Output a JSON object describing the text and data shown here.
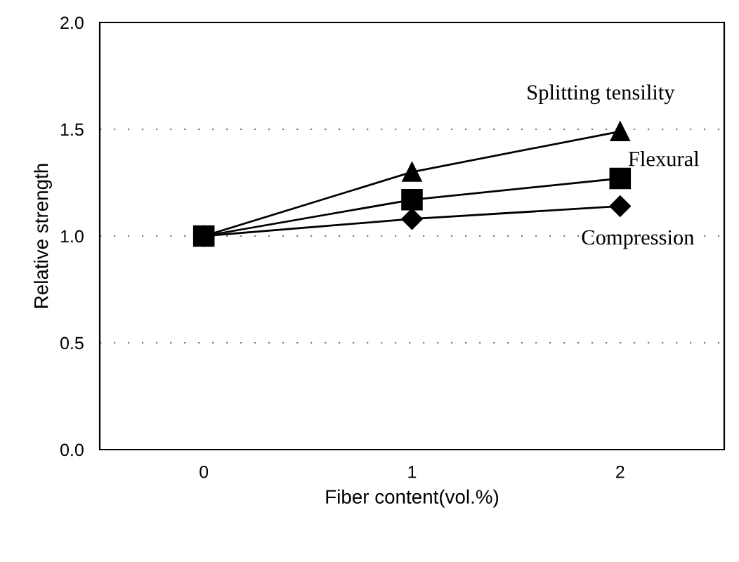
{
  "chart_data": {
    "type": "line",
    "xlabel": "Fiber content(vol.%)",
    "ylabel": "Relative strength",
    "x": [
      0,
      1,
      2
    ],
    "series": [
      {
        "name": "Splitting tensility",
        "color": "#000000",
        "marker": "triangle",
        "values": [
          1.0,
          1.3,
          1.49
        ]
      },
      {
        "name": "Flexural",
        "color": "#000000",
        "marker": "square",
        "values": [
          1.0,
          1.17,
          1.27
        ]
      },
      {
        "name": "Compression",
        "color": "#000000",
        "marker": "diamond",
        "values": [
          1.0,
          1.08,
          1.14
        ]
      }
    ],
    "xlim": [
      -0.5,
      2.5
    ],
    "xticks": [
      0,
      1,
      2
    ],
    "ylim": [
      0,
      2
    ],
    "yticks": [
      {
        "value": 0,
        "label": "0.0"
      },
      {
        "value": 0.5,
        "label": "0.5"
      },
      {
        "value": 1,
        "label": "1.0"
      },
      {
        "value": 1.5,
        "label": "1.5"
      },
      {
        "value": 2,
        "label": "2.0"
      }
    ],
    "grid": "y",
    "line_style": "solid",
    "legend": false
  }
}
